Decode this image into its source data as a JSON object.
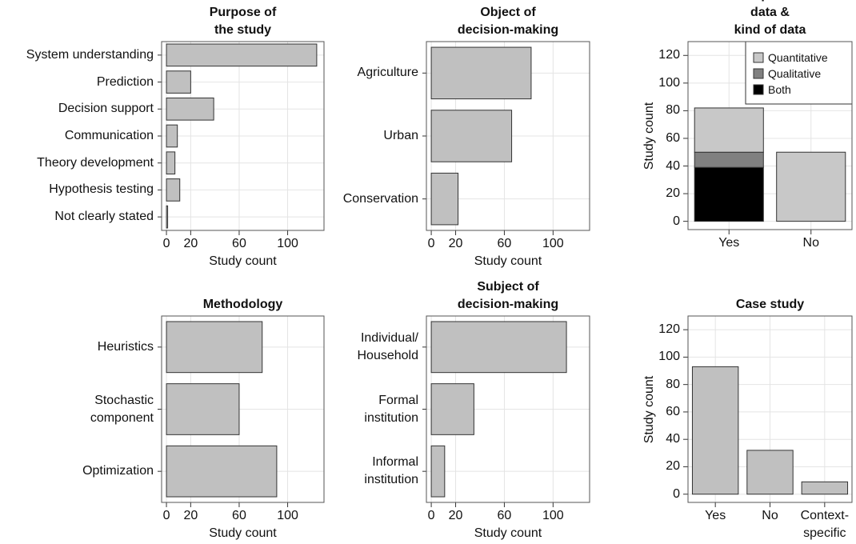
{
  "chart_data": [
    {
      "type": "bar",
      "orientation": "horizontal",
      "title": "Purpose of\nthe study",
      "xlabel": "Study count",
      "categories": [
        "System understanding",
        "Prediction",
        "Decision support",
        "Communication",
        "Theory development",
        "Hypothesis testing",
        "Not clearly stated"
      ],
      "values": [
        124,
        20,
        39,
        9,
        7,
        11,
        1
      ],
      "color": "#c0c0c0",
      "xlim": [
        -4,
        130
      ],
      "xticks": [
        0,
        20,
        60,
        100
      ],
      "grid": true
    },
    {
      "type": "bar",
      "orientation": "horizontal",
      "title": "Object of\ndecision-making",
      "xlabel": "Study count",
      "categories": [
        "Agriculture",
        "Urban",
        "Conservation"
      ],
      "values": [
        82,
        66,
        22
      ],
      "color": "#c0c0c0",
      "xlim": [
        -4,
        130
      ],
      "xticks": [
        0,
        20,
        60,
        100
      ],
      "grid": true
    },
    {
      "type": "bar",
      "stacked": true,
      "title": "Empirical data &\nkind of data",
      "ylabel": "Study count",
      "categories": [
        "Yes",
        "No"
      ],
      "series": [
        {
          "name": "Both",
          "color": "#000000",
          "values": [
            39,
            0
          ]
        },
        {
          "name": "Qualitative",
          "color": "#808080",
          "values": [
            11,
            0
          ]
        },
        {
          "name": "Quantitative",
          "color": "#c8c8c8",
          "values": [
            32,
            50
          ]
        }
      ],
      "ylim": [
        -6,
        130
      ],
      "yticks": [
        0,
        20,
        40,
        60,
        80,
        100,
        120
      ],
      "grid": true,
      "legend": "top-right"
    },
    {
      "type": "bar",
      "orientation": "horizontal",
      "title": "Methodology",
      "xlabel": "Study count",
      "categories": [
        "Heuristics",
        "Stochastic\ncomponent",
        "Optimization"
      ],
      "values": [
        79,
        60,
        91
      ],
      "color": "#c0c0c0",
      "xlim": [
        -4,
        130
      ],
      "xticks": [
        0,
        20,
        60,
        100
      ],
      "grid": true
    },
    {
      "type": "bar",
      "orientation": "horizontal",
      "title": "Subject of\ndecision-making",
      "xlabel": "Study count",
      "categories": [
        "Individual/\nHousehold",
        "Formal\ninstitution",
        "Informal\ninstitution"
      ],
      "values": [
        111,
        35,
        11
      ],
      "color": "#c0c0c0",
      "xlim": [
        -4,
        130
      ],
      "xticks": [
        0,
        20,
        60,
        100
      ],
      "grid": true
    },
    {
      "type": "bar",
      "title": "Case study",
      "ylabel": "Study count",
      "categories": [
        "Yes",
        "No",
        "Context-\nspecific"
      ],
      "values": [
        93,
        32,
        9
      ],
      "color": "#c0c0c0",
      "ylim": [
        -6,
        130
      ],
      "yticks": [
        0,
        20,
        40,
        60,
        80,
        100,
        120
      ],
      "grid": true
    }
  ]
}
